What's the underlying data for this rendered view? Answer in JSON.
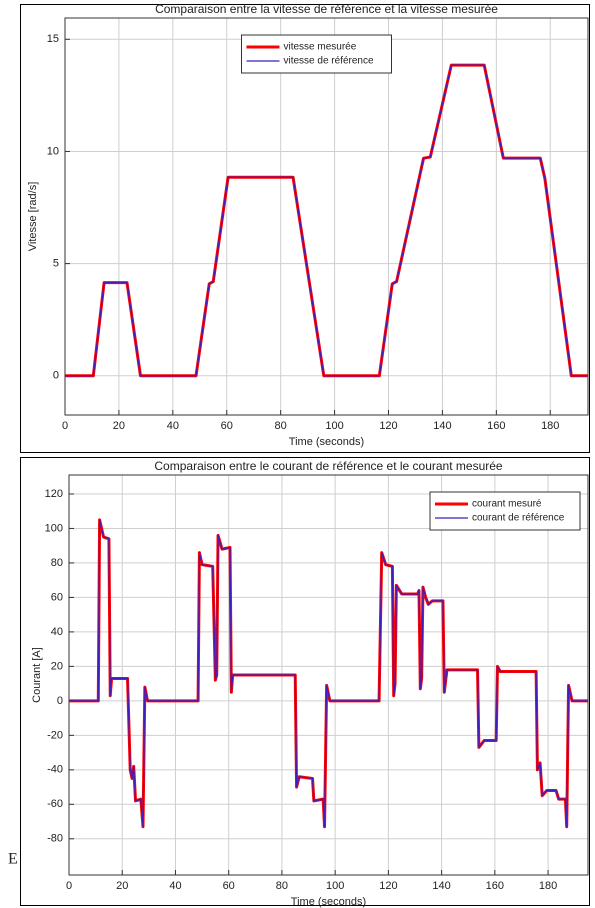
{
  "chart_data": [
    {
      "type": "line",
      "title": "Comparaison entre la vitesse de référence et la vitesse mesurée",
      "xlabel": "Time (seconds)",
      "ylabel": "Vitesse [rad/s]",
      "x": [
        0,
        10.5,
        14.5,
        23,
        28,
        48.6,
        53.5,
        55,
        60.5,
        84.6,
        96,
        116.6,
        121.4,
        123,
        133,
        135.5,
        143.3,
        155.5,
        162.6,
        176.3,
        178,
        187.8,
        194
      ],
      "series": [
        {
          "name": "vitesse mesurée",
          "color": "#ff0000",
          "values": [
            0,
            0,
            4.15,
            4.15,
            0,
            0,
            4.1,
            4.2,
            8.85,
            8.85,
            0,
            0,
            4.1,
            4.2,
            9.7,
            9.75,
            13.85,
            13.85,
            9.7,
            9.7,
            8.8,
            0,
            0
          ]
        },
        {
          "name": "vitesse de référence",
          "color": "#3b1fbf",
          "values": [
            0,
            0,
            4.15,
            4.15,
            0,
            0,
            4.1,
            4.2,
            8.85,
            8.85,
            0,
            0,
            4.1,
            4.2,
            9.7,
            9.75,
            13.85,
            13.85,
            9.7,
            9.7,
            8.8,
            0,
            0
          ]
        }
      ],
      "xlim": [
        0,
        194
      ],
      "ylim": [
        -1.75,
        15.95
      ],
      "xticks": [
        0,
        20,
        40,
        60,
        80,
        100,
        120,
        140,
        160,
        180
      ],
      "yticks": [
        0,
        5,
        10,
        15
      ],
      "grid": true,
      "legend": "north"
    },
    {
      "type": "line",
      "title": "Comparaison entre le courant de référence et le courant mesurée",
      "xlabel": "Time (seconds)",
      "ylabel": "Courant [A]",
      "x": [
        0,
        11,
        11.5,
        13,
        15,
        15.5,
        16,
        22,
        23,
        23.7,
        24.3,
        25,
        27,
        27.8,
        28.5,
        29.5,
        48.5,
        49,
        50,
        54,
        55,
        55.5,
        56,
        57.5,
        60.5,
        61,
        61.5,
        85,
        85.5,
        86.5,
        91.5,
        92,
        95.5,
        96,
        96.8,
        98,
        116.5,
        117.5,
        119,
        121.5,
        122,
        122.5,
        123,
        125,
        131,
        131.5,
        132,
        132.5,
        133,
        134,
        135,
        136.5,
        140.5,
        141,
        142,
        153.5,
        154,
        156,
        160.5,
        161,
        162,
        175.5,
        176,
        177,
        177.8,
        179.5,
        183,
        184,
        186.5,
        187,
        187.7,
        189,
        195
      ],
      "series": [
        {
          "name": "courant mesuré",
          "color": "#ff0000",
          "values": [
            0,
            0,
            105,
            95,
            94,
            3,
            13,
            13,
            -40,
            -45,
            -38,
            -58,
            -57,
            -73,
            8,
            0,
            0,
            86,
            79,
            78,
            12,
            15,
            96,
            88,
            89,
            5,
            15,
            15,
            -50,
            -44,
            -45,
            -58,
            -57,
            -73,
            9,
            0,
            0,
            86,
            79,
            78,
            3,
            10,
            67,
            62,
            62,
            64,
            7,
            13,
            66,
            60,
            56,
            58,
            58,
            5,
            18,
            18,
            -27,
            -23,
            -23,
            20,
            17,
            17,
            -40,
            -36,
            -55,
            -52,
            -52,
            -57,
            -57,
            -73,
            9,
            0,
            0
          ]
        },
        {
          "name": "courant de référence",
          "color": "#3b1fbf",
          "values": [
            0,
            0,
            105,
            95,
            94,
            3,
            13,
            13,
            -40,
            -45,
            -38,
            -58,
            -57,
            -73,
            8,
            0,
            0,
            86,
            79,
            78,
            12,
            15,
            96,
            88,
            89,
            5,
            15,
            15,
            -50,
            -44,
            -45,
            -58,
            -57,
            -73,
            9,
            0,
            0,
            86,
            79,
            78,
            3,
            10,
            67,
            62,
            62,
            64,
            7,
            13,
            66,
            60,
            56,
            58,
            58,
            5,
            18,
            18,
            -27,
            -23,
            -23,
            20,
            17,
            17,
            -40,
            -36,
            -55,
            -52,
            -52,
            -57,
            -57,
            -73,
            9,
            0,
            0
          ]
        }
      ],
      "xlim": [
        0,
        195
      ],
      "ylim": [
        -101,
        131
      ],
      "xticks": [
        0,
        20,
        40,
        60,
        80,
        100,
        120,
        140,
        160,
        180
      ],
      "yticks": [
        -80,
        -60,
        -40,
        -20,
        0,
        20,
        40,
        60,
        80,
        100,
        120
      ],
      "grid": true,
      "legend": "northeast"
    }
  ],
  "side_mark": "E"
}
